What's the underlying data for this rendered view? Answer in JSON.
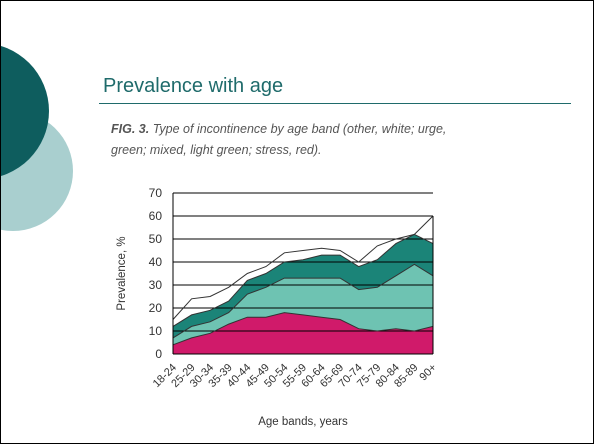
{
  "slide": {
    "title": "Prevalence with age",
    "caption_prefix": "FIG. 3.",
    "caption_text": "Type of incontinence by age band (other, white; urge, green; mixed, light green; stress, red)."
  },
  "colors": {
    "title": "#1f6b6b",
    "circle_dark": "#0e5d5e",
    "circle_light": "#a9cfcf",
    "stress": "#d01a6a",
    "mixed": "#6ec3b2",
    "urge": "#1b8478",
    "other": "#ffffff",
    "outline": "#333333"
  },
  "chart_data": {
    "type": "area",
    "stacked": true,
    "x": [
      "18-24",
      "25-29",
      "30-34",
      "35-39",
      "40-44",
      "45-49",
      "50-54",
      "55-59",
      "60-64",
      "65-69",
      "70-74",
      "75-79",
      "80-84",
      "85-89",
      "90+"
    ],
    "series": [
      {
        "name": "stress",
        "color": "#d01a6a",
        "values": [
          4,
          7,
          9,
          13,
          16,
          16,
          18,
          17,
          16,
          15,
          11,
          10,
          11,
          10,
          12
        ]
      },
      {
        "name": "mixed",
        "color": "#6ec3b2",
        "values": [
          3,
          5,
          5,
          5,
          10,
          13,
          15,
          16,
          17,
          18,
          17,
          19,
          23,
          29,
          22
        ]
      },
      {
        "name": "urge",
        "color": "#1b8478",
        "values": [
          5,
          5,
          5,
          5,
          6,
          6,
          7,
          8,
          10,
          10,
          10,
          12,
          14,
          13,
          14
        ]
      },
      {
        "name": "other",
        "color": "#ffffff",
        "values": [
          3,
          7,
          6,
          6,
          3,
          3,
          4,
          4,
          3,
          2,
          2,
          6,
          2,
          0,
          12
        ]
      }
    ],
    "ylabel": "Prevalence, %",
    "xlabel": "Age bands, years",
    "yticks": [
      0,
      10,
      20,
      30,
      40,
      50,
      60,
      70
    ],
    "ylim": [
      0,
      70
    ],
    "grid": "horizontal",
    "legend": "none"
  }
}
